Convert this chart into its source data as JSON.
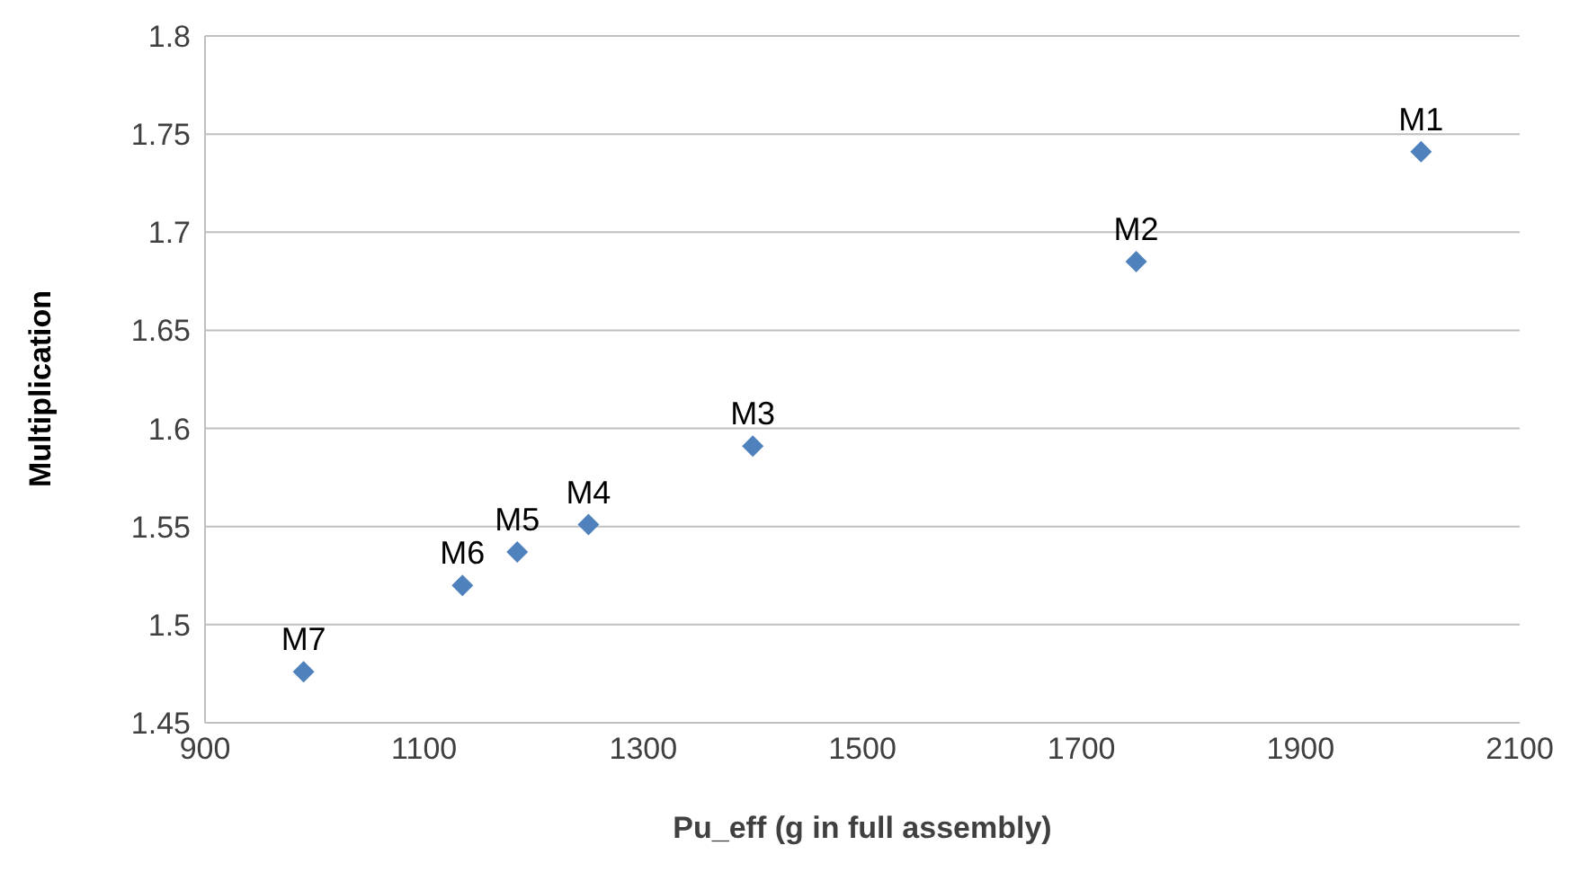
{
  "chart_data": {
    "type": "scatter",
    "xlabel": "Pu_eff (g in full assembly)",
    "ylabel": "Multiplication",
    "x": [
      2010,
      1750,
      1400,
      1250,
      1185,
      1135,
      990
    ],
    "series": [
      {
        "color": "#4f81bd",
        "values": [
          1.741,
          1.685,
          1.591,
          1.551,
          1.537,
          1.52,
          1.476
        ]
      }
    ],
    "xlim": [
      900,
      2100
    ],
    "xticks": [
      900,
      1100,
      1300,
      1500,
      1700,
      1900,
      2100
    ],
    "ylim": [
      1.45,
      1.8
    ],
    "yticks": [
      1.45,
      1.5,
      1.55,
      1.6,
      1.65,
      1.7,
      1.75,
      1.8
    ],
    "grid": "y",
    "marker": "diamond",
    "legend": false,
    "annotations": [
      {
        "text": "M1",
        "x": 2010,
        "y": 1.741
      },
      {
        "text": "M2",
        "x": 1750,
        "y": 1.685
      },
      {
        "text": "M3",
        "x": 1400,
        "y": 1.591
      },
      {
        "text": "M4",
        "x": 1250,
        "y": 1.551
      },
      {
        "text": "M5",
        "x": 1185,
        "y": 1.537
      },
      {
        "text": "M6",
        "x": 1135,
        "y": 1.52
      },
      {
        "text": "M7",
        "x": 990,
        "y": 1.476
      }
    ]
  }
}
